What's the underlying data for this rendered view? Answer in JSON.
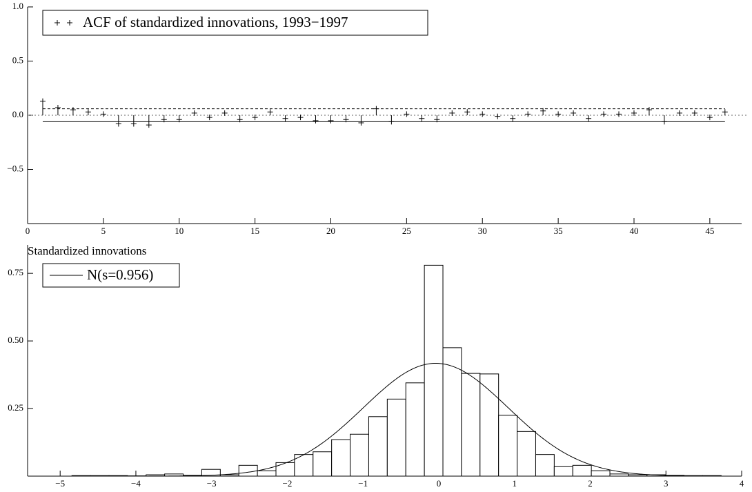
{
  "chart_data": [
    {
      "type": "acf",
      "legend_label": "ACF of standardized innovations, 1993−1997",
      "x": [
        1,
        2,
        3,
        4,
        5,
        6,
        7,
        8,
        9,
        10,
        11,
        12,
        13,
        14,
        15,
        16,
        17,
        18,
        19,
        20,
        21,
        22,
        23,
        24,
        25,
        26,
        27,
        28,
        29,
        30,
        31,
        32,
        33,
        34,
        35,
        36,
        37,
        38,
        39,
        40,
        41,
        42,
        43,
        44,
        45,
        46
      ],
      "values": [
        0.13,
        0.07,
        0.05,
        0.03,
        0.01,
        -0.08,
        -0.08,
        -0.09,
        -0.04,
        -0.04,
        0.02,
        -0.02,
        0.02,
        -0.04,
        -0.02,
        0.03,
        -0.03,
        -0.02,
        -0.05,
        -0.05,
        -0.04,
        -0.07,
        0.06,
        -0.06,
        0.01,
        -0.03,
        -0.04,
        0.02,
        0.03,
        0.01,
        -0.01,
        -0.03,
        0.01,
        0.04,
        0.01,
        0.02,
        -0.03,
        0.01,
        0.01,
        0.02,
        0.05,
        -0.06,
        0.02,
        0.02,
        -0.02,
        0.03
      ],
      "color": "#000000",
      "conf_upper": 0.06,
      "conf_lower": -0.06,
      "xlim": [
        0,
        47.1
      ],
      "ylim": [
        -1,
        1
      ],
      "xticks": [
        0,
        5,
        10,
        15,
        20,
        25,
        30,
        35,
        40,
        45
      ],
      "yticks": [
        {
          "value": -0.5,
          "label": "−0.5"
        },
        {
          "value": 0,
          "label": "0.0"
        },
        0.5,
        {
          "value": 1,
          "label": "1.0"
        }
      ],
      "legend": "upper left"
    },
    {
      "type": "histogram",
      "title": "Standardized innovations",
      "bins": [
        -4.845,
        -4.6,
        -4.355,
        -4.11,
        -3.865,
        -3.62,
        -3.375,
        -3.13,
        -2.885,
        -2.64,
        -2.395,
        -2.15,
        -1.905,
        -1.66,
        -1.415,
        -1.17,
        -0.925,
        -0.68,
        -0.435,
        -0.19,
        0.055,
        0.3,
        0.545,
        0.79,
        1.035,
        1.28,
        1.525,
        1.77,
        2.015,
        2.26,
        2.505,
        2.75,
        2.995,
        3.24,
        3.485,
        3.73
      ],
      "values": [
        0.002,
        0.002,
        0.002,
        0.001,
        0.005,
        0.008,
        0.003,
        0.025,
        0.005,
        0.04,
        0.02,
        0.05,
        0.08,
        0.09,
        0.135,
        0.155,
        0.22,
        0.285,
        0.345,
        0.78,
        0.475,
        0.38,
        0.378,
        0.225,
        0.165,
        0.08,
        0.035,
        0.04,
        0.02,
        0.008,
        0.005,
        0.005,
        0.003,
        0.002,
        0.002
      ],
      "curve": {
        "name": "N(s=0.956)",
        "mean": -0.04,
        "sd": 0.956
      },
      "xlim": [
        -5.43,
        4
      ],
      "ylim": [
        0,
        0.855
      ],
      "xticks": [
        {
          "value": -5,
          "label": "−5"
        },
        {
          "value": -4,
          "label": "−4"
        },
        {
          "value": -3,
          "label": "−3"
        },
        {
          "value": -2,
          "label": "−2"
        },
        {
          "value": -1,
          "label": "−1"
        },
        0,
        1,
        2,
        3,
        4
      ],
      "yticks": [
        0.25,
        {
          "value": 0.5,
          "label": "0.50"
        },
        0.75
      ],
      "legend": "upper left"
    }
  ]
}
